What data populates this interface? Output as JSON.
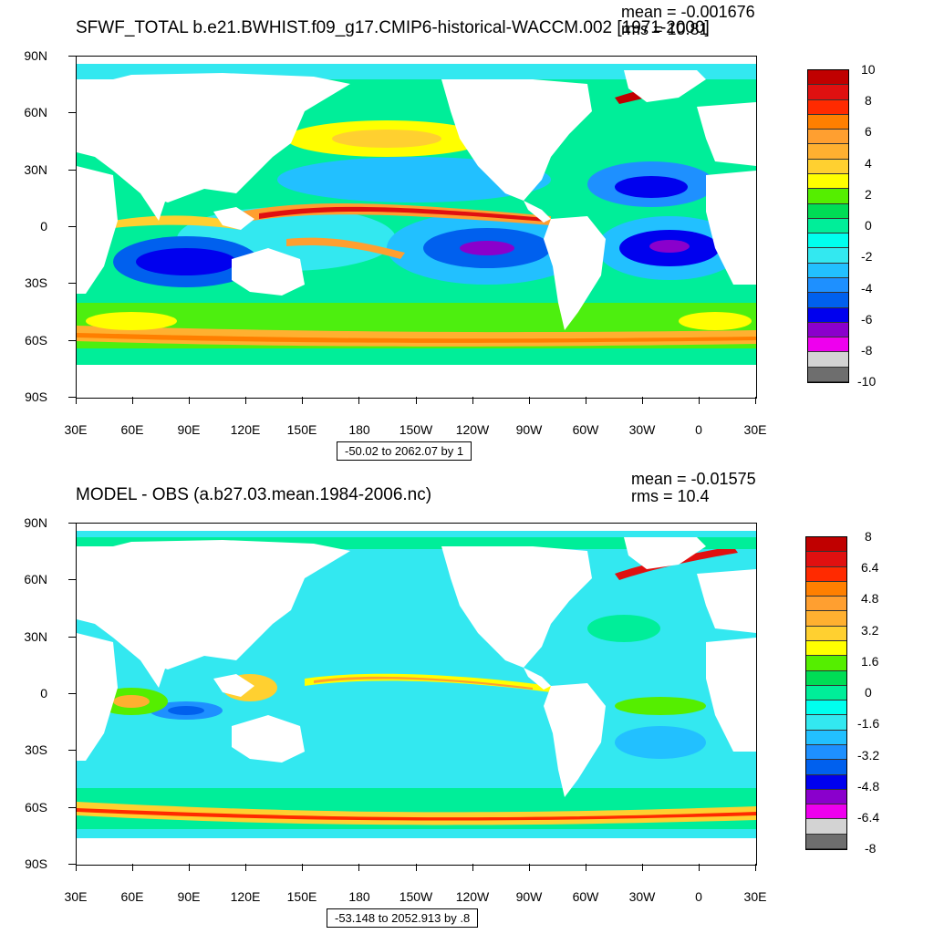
{
  "top": {
    "title": "SFWF_TOTAL b.e21.BWHIST.f09_g17.CMIP6-historical-WACCM.002 [1971-2000]",
    "mean_text": "mean = -0.001676",
    "rms_text": "rms = 10.81",
    "range_text": "-50.02 to 2062.07 by 1",
    "colorbar_labels": [
      "10",
      "8",
      "6",
      "4",
      "2",
      "0",
      "-2",
      "-4",
      "-6",
      "-8",
      "-10"
    ]
  },
  "bottom": {
    "title": "MODEL - OBS (a.b27.03.mean.1984-2006.nc)",
    "mean_text": "mean = -0.01575",
    "rms_text": "rms = 10.4",
    "range_text": "-53.148 to 2052.913 by .8",
    "colorbar_labels": [
      "8",
      "6.4",
      "4.8",
      "3.2",
      "1.6",
      "0",
      "-1.6",
      "-3.2",
      "-4.8",
      "-6.4",
      "-8"
    ]
  },
  "axes": {
    "lat_labels": [
      "90N",
      "60N",
      "30N",
      "0",
      "30S",
      "60S",
      "90S"
    ],
    "lon_labels": [
      "30E",
      "60E",
      "90E",
      "120E",
      "150E",
      "180",
      "150W",
      "120W",
      "90W",
      "60W",
      "30W",
      "0",
      "30E"
    ]
  },
  "colors": {
    "colorbar": [
      "#c00000",
      "#e01010",
      "#ff2a00",
      "#ff7f00",
      "#ff9f30",
      "#ffb030",
      "#ffd030",
      "#ffff00",
      "#55ee00",
      "#00dd55",
      "#00ee99",
      "#00ffee",
      "#33e8f0",
      "#22c0ff",
      "#1e90ff",
      "#0060ee",
      "#0000ee",
      "#8a00cc",
      "#ee00ee",
      "#d3d3d3",
      "#6e6e6e"
    ],
    "land": "#ffffff",
    "ocean_base_top": "#00ee99",
    "ocean_base_bottom": "#33e8f0"
  }
}
